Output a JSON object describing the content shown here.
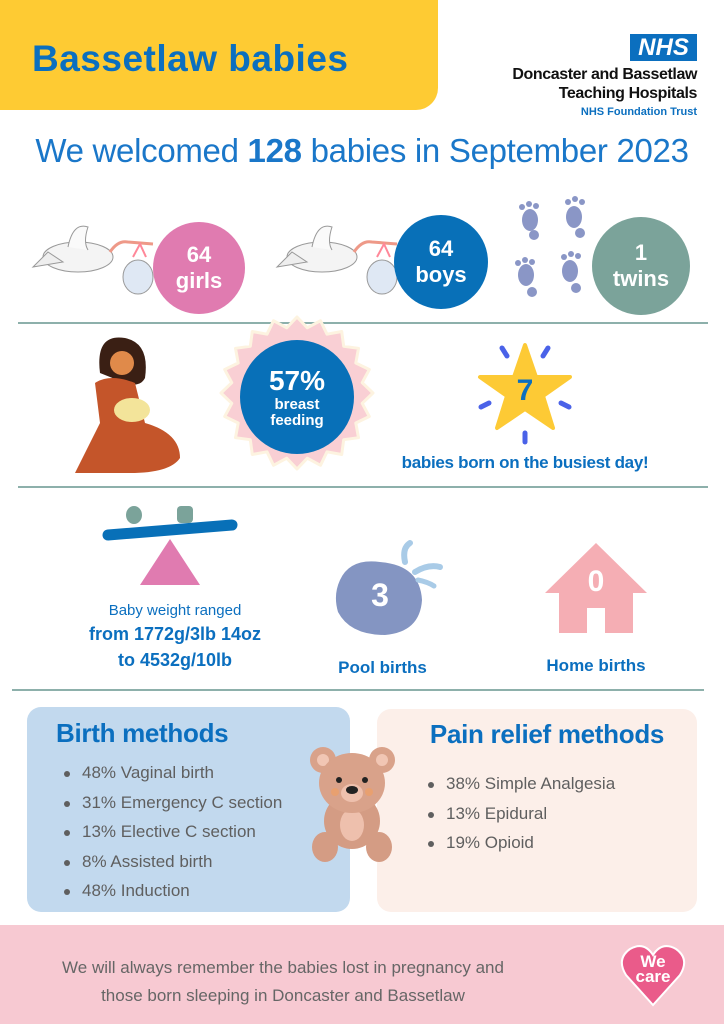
{
  "header": {
    "title": "Bassetlaw babies",
    "logo": {
      "badge": "NHS",
      "org_line1": "Doncaster and Bassetlaw",
      "org_line2": "Teaching Hospitals",
      "trust": "NHS Foundation Trust"
    }
  },
  "headline": {
    "prefix": "We welcomed ",
    "count": "128",
    "suffix": " babies in September 2023"
  },
  "births": {
    "girls": {
      "value": "64",
      "label": "girls",
      "color": "#e07bb0"
    },
    "boys": {
      "value": "64",
      "label": "boys",
      "color": "#0870b8"
    },
    "twins": {
      "value": "1",
      "label": "twins",
      "color": "#7ba39a"
    }
  },
  "breastfeeding": {
    "value": "57%",
    "label_line1": "breast",
    "label_line2": "feeding"
  },
  "busiest_day": {
    "value": "7",
    "label": "babies born on the busiest day!"
  },
  "weight": {
    "line1": "Baby weight ranged",
    "line2": "from 1772g/3lb 14oz",
    "line3": "to 4532g/10lb"
  },
  "pool": {
    "value": "3",
    "label": "Pool births"
  },
  "home": {
    "value": "0",
    "label": "Home births"
  },
  "birth_methods": {
    "title": "Birth methods",
    "items": [
      "48% Vaginal birth",
      "31% Emergency C section",
      "13% Elective C section",
      "8% Assisted birth",
      "48% Induction"
    ]
  },
  "pain_relief": {
    "title": "Pain relief methods",
    "items": [
      "38% Simple Analgesia",
      "13% Epidural",
      "19% Opioid"
    ]
  },
  "footer": {
    "line1": "We will always remember the babies lost in pregnancy and",
    "line2": "those born sleeping in Doncaster and Bassetlaw",
    "badge_line1": "We",
    "badge_line2": "care"
  }
}
